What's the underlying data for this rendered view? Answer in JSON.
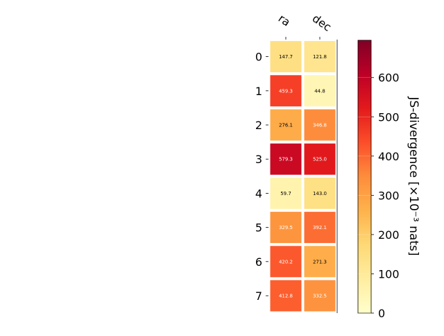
{
  "chart_data": {
    "type": "heatmap",
    "columns": [
      "ra",
      "dec"
    ],
    "rows": [
      "0",
      "1",
      "2",
      "3",
      "4",
      "5",
      "6",
      "7"
    ],
    "values": [
      [
        147.7,
        121.8
      ],
      [
        459.3,
        44.8
      ],
      [
        276.1,
        346.8
      ],
      [
        579.3,
        525.0
      ],
      [
        59.7,
        143.0
      ],
      [
        329.5,
        392.1
      ],
      [
        420.2,
        271.3
      ],
      [
        412.8,
        332.5
      ]
    ],
    "colorbar": {
      "label": "JS-divergence [×10⁻³ nats]",
      "range": [
        0,
        695
      ],
      "ticks": [
        0,
        100,
        200,
        300,
        400,
        500,
        600
      ],
      "colormap": "YlOrRd"
    }
  }
}
